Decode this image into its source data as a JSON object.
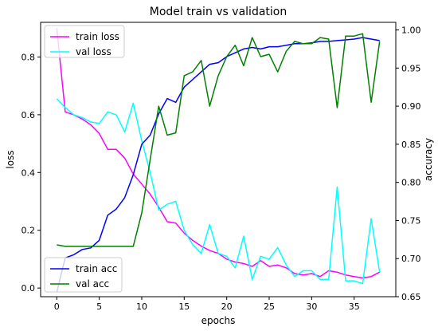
{
  "chart_data": {
    "type": "line",
    "title": "Model train vs validation",
    "xlabel": "epochs",
    "ylabel_left": "loss",
    "ylabel_right": "accuracy",
    "xlim": [
      -1.9,
      39.9
    ],
    "ylim_left": [
      -0.03,
      0.92
    ],
    "ylim_right": [
      0.65,
      1.01
    ],
    "x_ticks": [
      0,
      5,
      10,
      15,
      20,
      25,
      30,
      35
    ],
    "y_ticks_left": [
      0.0,
      0.2,
      0.4,
      0.6,
      0.8
    ],
    "y_ticks_left_labels": [
      "0.0",
      "0.2",
      "0.4",
      "0.6",
      "0.8"
    ],
    "y_ticks_right": [
      0.65,
      0.7,
      0.75,
      0.8,
      0.85,
      0.9,
      0.95,
      1.0
    ],
    "y_ticks_right_labels": [
      "0.65",
      "0.70",
      "0.75",
      "0.80",
      "0.85",
      "0.90",
      "0.95",
      "1.00"
    ],
    "legend_left": {
      "placement": "upper-left",
      "entries": [
        "train loss",
        "val loss"
      ]
    },
    "legend_right": {
      "placement": "lower-left",
      "entries": [
        "train acc",
        "val acc"
      ]
    },
    "x": [
      0,
      1,
      2,
      3,
      4,
      5,
      6,
      7,
      8,
      9,
      10,
      11,
      12,
      13,
      14,
      15,
      16,
      17,
      18,
      19,
      20,
      21,
      22,
      23,
      24,
      25,
      26,
      27,
      28,
      29,
      30,
      31,
      32,
      33,
      34,
      35,
      36,
      37,
      38
    ],
    "series": [
      {
        "name": "train loss",
        "axis": "left",
        "color": "#ff00ff",
        "values": [
          0.9,
          0.61,
          0.6,
          0.585,
          0.565,
          0.535,
          0.48,
          0.48,
          0.45,
          0.395,
          0.36,
          0.325,
          0.28,
          0.23,
          0.225,
          0.19,
          0.165,
          0.145,
          0.13,
          0.12,
          0.1,
          0.09,
          0.085,
          0.075,
          0.095,
          0.075,
          0.08,
          0.07,
          0.05,
          0.045,
          0.05,
          0.04,
          0.06,
          0.055,
          0.045,
          0.04,
          0.035,
          0.04,
          0.055
        ]
      },
      {
        "name": "val loss",
        "axis": "left",
        "color": "#00ffff",
        "values": [
          0.655,
          0.625,
          0.6,
          0.59,
          0.575,
          0.57,
          0.61,
          0.6,
          0.54,
          0.64,
          0.51,
          0.4,
          0.27,
          0.29,
          0.3,
          0.2,
          0.15,
          0.12,
          0.22,
          0.12,
          0.11,
          0.07,
          0.18,
          0.03,
          0.11,
          0.1,
          0.14,
          0.08,
          0.04,
          0.06,
          0.06,
          0.03,
          0.03,
          0.35,
          0.025,
          0.025,
          0.015,
          0.24,
          0.055
        ]
      },
      {
        "name": "train acc",
        "axis": "right",
        "color": "#0000ff",
        "values": [
          0.656,
          0.701,
          0.705,
          0.712,
          0.714,
          0.724,
          0.757,
          0.765,
          0.78,
          0.81,
          0.85,
          0.862,
          0.89,
          0.91,
          0.905,
          0.925,
          0.935,
          0.945,
          0.955,
          0.957,
          0.965,
          0.97,
          0.975,
          0.977,
          0.975,
          0.978,
          0.978,
          0.98,
          0.982,
          0.982,
          0.983,
          0.985,
          0.985,
          0.986,
          0.987,
          0.988,
          0.99,
          0.988,
          0.986
        ]
      },
      {
        "name": "val acc",
        "axis": "right",
        "color": "#008000",
        "values": [
          0.718,
          0.716,
          0.716,
          0.716,
          0.716,
          0.716,
          0.716,
          0.716,
          0.716,
          0.716,
          0.76,
          0.83,
          0.9,
          0.862,
          0.865,
          0.94,
          0.945,
          0.96,
          0.9,
          0.94,
          0.965,
          0.98,
          0.953,
          0.99,
          0.965,
          0.968,
          0.945,
          0.972,
          0.985,
          0.982,
          0.982,
          0.99,
          0.988,
          0.898,
          0.992,
          0.992,
          0.995,
          0.905,
          0.985
        ]
      }
    ]
  }
}
